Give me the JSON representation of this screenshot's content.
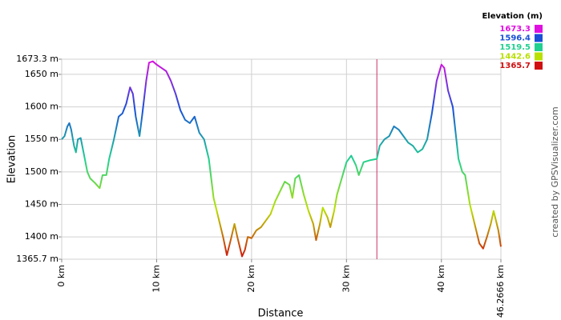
{
  "chart_data": {
    "type": "line",
    "xlabel": "Distance",
    "ylabel": "Elevation",
    "credit": "created by GPSVisualizer.com",
    "xlim": [
      0,
      46.2666
    ],
    "ylim": [
      1365.7,
      1673.3
    ],
    "xticks": [
      {
        "value": 0,
        "label": "0 km"
      },
      {
        "value": 10,
        "label": "10 km"
      },
      {
        "value": 20,
        "label": "20 km"
      },
      {
        "value": 30,
        "label": "30 km"
      },
      {
        "value": 40,
        "label": "40 km"
      },
      {
        "value": 46.2666,
        "label": "46.2666 km"
      }
    ],
    "yticks": [
      {
        "value": 1365.7,
        "label": "1365.7 m"
      },
      {
        "value": 1400,
        "label": "1400 m"
      },
      {
        "value": 1450,
        "label": "1450 m"
      },
      {
        "value": 1500,
        "label": "1500 m"
      },
      {
        "value": 1550,
        "label": "1550 m"
      },
      {
        "value": 1600,
        "label": "1600 m"
      },
      {
        "value": 1650,
        "label": "1650 m"
      },
      {
        "value": 1673.3,
        "label": "1673.3 m"
      }
    ],
    "grid": true,
    "marker_x": 33.2,
    "marker_color": "#cc3366",
    "legend": {
      "title": "Elevation (m)",
      "entries": [
        {
          "value": 1673.3,
          "color": "#e010e0"
        },
        {
          "value": 1596.4,
          "color": "#1a50d8"
        },
        {
          "value": 1519.5,
          "color": "#20d090"
        },
        {
          "value": 1442.6,
          "color": "#b8e000"
        },
        {
          "value": 1365.7,
          "color": "#d01010"
        }
      ]
    },
    "x": [
      0,
      0.3,
      0.6,
      0.8,
      1.0,
      1.3,
      1.5,
      1.7,
      2.0,
      2.3,
      2.7,
      3.0,
      3.5,
      4.0,
      4.3,
      4.7,
      5.0,
      5.5,
      6.0,
      6.4,
      6.8,
      7.2,
      7.5,
      7.8,
      8.2,
      8.5,
      8.9,
      9.2,
      9.6,
      10.0,
      10.5,
      11.0,
      11.5,
      12.0,
      12.5,
      13.0,
      13.5,
      14.0,
      14.5,
      15.0,
      15.5,
      16.0,
      16.5,
      17.0,
      17.4,
      17.8,
      18.2,
      18.5,
      19.0,
      19.3,
      19.6,
      20.0,
      20.5,
      21.0,
      21.5,
      22.0,
      22.5,
      23.0,
      23.5,
      24.0,
      24.3,
      24.6,
      25.0,
      25.5,
      26.0,
      26.5,
      26.8,
      27.2,
      27.5,
      28.0,
      28.3,
      28.7,
      29.0,
      29.5,
      30.0,
      30.5,
      31.0,
      31.3,
      31.8,
      32.5,
      33.2,
      33.5,
      34.0,
      34.5,
      35.0,
      35.5,
      36.0,
      36.5,
      37.0,
      37.5,
      38.0,
      38.5,
      39.0,
      39.5,
      40.0,
      40.3,
      40.7,
      41.2,
      41.5,
      41.8,
      42.2,
      42.5,
      43.0,
      43.5,
      44.0,
      44.4,
      44.8,
      45.2,
      45.5,
      46.0,
      46.2666
    ],
    "values": [
      1550,
      1555,
      1570,
      1575,
      1565,
      1540,
      1530,
      1550,
      1552,
      1530,
      1500,
      1490,
      1483,
      1475,
      1495,
      1495,
      1520,
      1550,
      1585,
      1590,
      1605,
      1630,
      1620,
      1585,
      1555,
      1590,
      1640,
      1668,
      1670,
      1665,
      1660,
      1655,
      1640,
      1620,
      1595,
      1580,
      1575,
      1585,
      1560,
      1550,
      1520,
      1460,
      1430,
      1400,
      1372,
      1395,
      1420,
      1400,
      1370,
      1380,
      1400,
      1398,
      1410,
      1415,
      1425,
      1435,
      1455,
      1470,
      1485,
      1480,
      1460,
      1490,
      1495,
      1465,
      1440,
      1420,
      1395,
      1420,
      1445,
      1430,
      1415,
      1440,
      1465,
      1490,
      1515,
      1525,
      1510,
      1495,
      1515,
      1518,
      1520,
      1540,
      1550,
      1555,
      1570,
      1565,
      1555,
      1545,
      1540,
      1530,
      1535,
      1550,
      1590,
      1640,
      1665,
      1660,
      1625,
      1600,
      1560,
      1520,
      1500,
      1495,
      1450,
      1420,
      1390,
      1382,
      1400,
      1420,
      1440,
      1410,
      1385
    ]
  }
}
